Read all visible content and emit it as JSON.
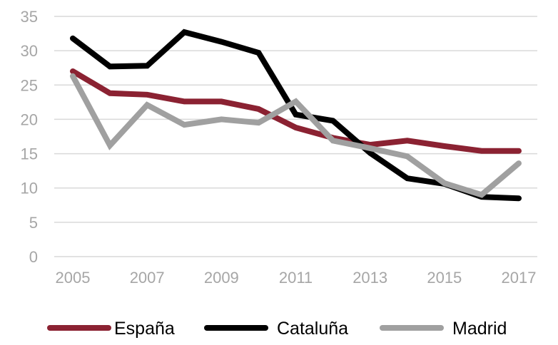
{
  "chart_data": {
    "type": "line",
    "title": "",
    "xlabel": "",
    "ylabel": "",
    "x": [
      2005,
      2006,
      2007,
      2008,
      2009,
      2010,
      2011,
      2012,
      2013,
      2014,
      2015,
      2016,
      2017
    ],
    "x_tick_labels": [
      "2005",
      "2007",
      "2009",
      "2011",
      "2013",
      "2015",
      "2017"
    ],
    "y_tick_labels": [
      "0",
      "5",
      "10",
      "15",
      "20",
      "25",
      "30",
      "35"
    ],
    "ylim": [
      0,
      35
    ],
    "grid": true,
    "legend_position": "bottom",
    "series": [
      {
        "name": "España",
        "color": "#8b2232",
        "values": [
          27.0,
          23.8,
          23.6,
          22.6,
          22.6,
          21.5,
          18.8,
          17.3,
          16.3,
          16.9,
          16.1,
          15.4,
          15.4
        ]
      },
      {
        "name": "Cataluña",
        "color": "#000000",
        "values": [
          31.8,
          27.7,
          27.8,
          32.7,
          31.3,
          29.7,
          20.7,
          19.8,
          15.1,
          11.4,
          10.6,
          8.7,
          8.5
        ]
      },
      {
        "name": "Madrid",
        "color": "#a0a0a0",
        "values": [
          26.3,
          16.2,
          22.1,
          19.2,
          20.0,
          19.5,
          22.6,
          16.9,
          15.8,
          14.6,
          10.7,
          9.0,
          13.6
        ]
      }
    ]
  }
}
